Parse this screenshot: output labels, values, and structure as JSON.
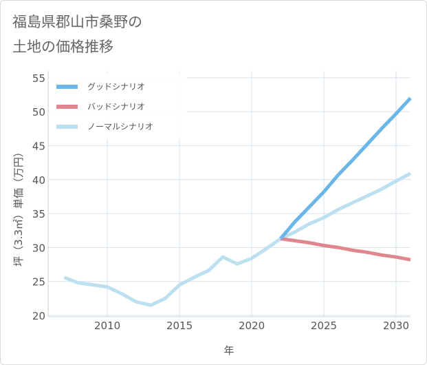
{
  "chart_data": {
    "type": "line",
    "title": "福島県郡山市桑野の\n土地の価格推移",
    "xlabel": "年",
    "ylabel": "坪（3.3㎡）単価（万円）",
    "xlim": [
      2005.9,
      2031
    ],
    "ylim": [
      19.8,
      56
    ],
    "xticks": [
      2010,
      2015,
      2020,
      2025,
      2030
    ],
    "yticks": [
      20,
      25,
      30,
      35,
      40,
      45,
      50,
      55
    ],
    "grid": true,
    "legend_position": "top-left",
    "series": [
      {
        "name": "グッドシナリオ",
        "color": "#6bb6e8",
        "x": [
          2022,
          2023,
          2024,
          2025,
          2026,
          2027,
          2028,
          2029,
          2030,
          2031
        ],
        "y": [
          31.3,
          33.8,
          36.0,
          38.2,
          40.7,
          42.9,
          45.2,
          47.5,
          49.7,
          52.0
        ]
      },
      {
        "name": "バッドシナリオ",
        "color": "#e0868f",
        "x": [
          2022,
          2023,
          2024,
          2025,
          2026,
          2027,
          2028,
          2029,
          2030,
          2031
        ],
        "y": [
          31.3,
          31.0,
          30.7,
          30.3,
          30.0,
          29.6,
          29.3,
          28.9,
          28.6,
          28.2
        ]
      },
      {
        "name": "ノーマルシナリオ",
        "color": "#bde0f0",
        "x": [
          2007,
          2008,
          2009,
          2010,
          2011,
          2012,
          2013,
          2014,
          2015,
          2016,
          2017,
          2018,
          2019,
          2020,
          2021,
          2022,
          2023,
          2024,
          2025,
          2026,
          2027,
          2028,
          2029,
          2030,
          2031
        ],
        "y": [
          25.6,
          24.8,
          24.5,
          24.2,
          23.2,
          22.0,
          21.5,
          22.5,
          24.5,
          25.6,
          26.6,
          28.6,
          27.6,
          28.4,
          29.8,
          31.3,
          32.3,
          33.5,
          34.4,
          35.6,
          36.6,
          37.6,
          38.6,
          39.8,
          40.9
        ]
      }
    ]
  }
}
